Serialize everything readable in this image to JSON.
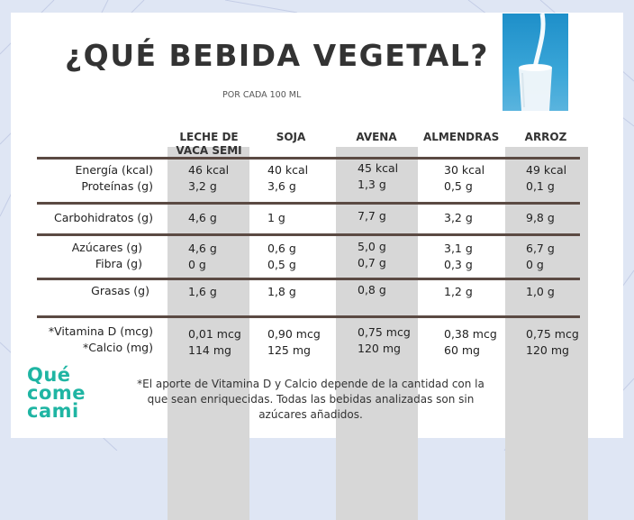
{
  "title": "¿QUÉ BEBIDA VEGETAL?",
  "subtitle": "POR CADA 100 ML",
  "columns": [
    "LECHE DE VACA SEMI",
    "SOJA",
    "AVENA",
    "ALMENDRAS",
    "ARROZ"
  ],
  "column_lines": [
    [
      "LECHE DE",
      "VACA SEMI"
    ],
    [
      "SOJA"
    ],
    [
      "AVENA"
    ],
    [
      "ALMENDRAS"
    ],
    [
      "ARROZ"
    ]
  ],
  "rows": [
    {
      "label": "Energía (kcal)",
      "values": [
        "46 kcal",
        "40 kcal",
        "45 kcal",
        "30 kcal",
        "49 kcal"
      ]
    },
    {
      "label": "Proteínas (g)",
      "values": [
        "3,2 g",
        "3,6 g",
        "1,3 g",
        "0,5 g",
        "0,1 g"
      ]
    },
    {
      "label": "Carbohidratos (g)",
      "values": [
        "4,6 g",
        "1 g",
        "7,7 g",
        "3,2 g",
        "9,8 g"
      ]
    },
    {
      "label": "Azúcares (g)",
      "values": [
        "4,6 g",
        "0,6 g",
        "5,0 g",
        "3,1 g",
        "6,7 g"
      ]
    },
    {
      "label": "Fibra (g)",
      "values": [
        "0 g",
        "0,5 g",
        "0,7 g",
        "0,3 g",
        "0 g"
      ]
    },
    {
      "label": "Grasas (g)",
      "values": [
        "1,6 g",
        "1,8 g",
        "0,8 g",
        "1,2 g",
        "1,0 g"
      ]
    },
    {
      "label": "*Vitamina D (mcg)",
      "values": [
        "0,01 mcg",
        "0,90 mcg",
        "0,75 mcg",
        "0,38 mcg",
        "0,75 mcg"
      ]
    },
    {
      "label": "*Calcio (mg)",
      "values": [
        "114 mg",
        "125 mg",
        "120 mg",
        "60 mg",
        "120 mg"
      ]
    }
  ],
  "logo_lines": [
    "Qué",
    "come",
    "cami"
  ],
  "footnote": "*El aporte de Vitamina D y Calcio depende de la cantidad con la que sean enriquecidas. Todas las bebidas analizadas son sin azúcares añadidos.",
  "colors": {
    "background": "#dfe6f4",
    "shaded_column": "#d7d7d7",
    "separator": "#5b4a43",
    "logo": "#1fb5a3",
    "photo": "#2a9ad0"
  }
}
